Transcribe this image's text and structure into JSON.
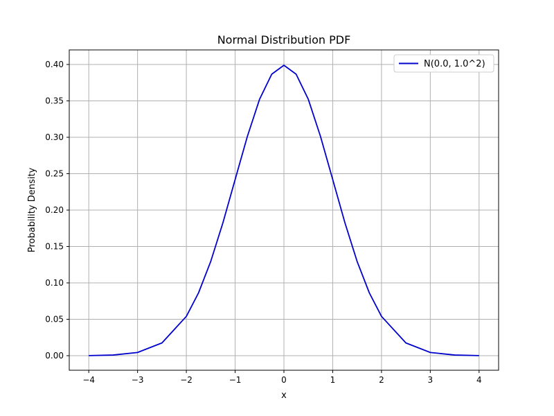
{
  "chart_data": {
    "type": "line",
    "title": "Normal Distribution PDF",
    "xlabel": "x",
    "ylabel": "Probability Density",
    "xlim": [
      -4.4,
      4.4
    ],
    "ylim": [
      -0.02,
      0.42
    ],
    "x_ticks": [
      -4,
      -3,
      -2,
      -1,
      0,
      1,
      2,
      3,
      4
    ],
    "x_tick_labels": [
      "−4",
      "−3",
      "−2",
      "−1",
      "0",
      "1",
      "2",
      "3",
      "4"
    ],
    "y_ticks": [
      0.0,
      0.05,
      0.1,
      0.15,
      0.2,
      0.25,
      0.3,
      0.35,
      0.4
    ],
    "y_tick_labels": [
      "0.00",
      "0.05",
      "0.10",
      "0.15",
      "0.20",
      "0.25",
      "0.30",
      "0.35",
      "0.40"
    ],
    "grid": true,
    "legend": {
      "placement": "top-right"
    },
    "series": [
      {
        "name": "N(0.0, 1.0^2)",
        "color": "#0000cc",
        "x": [
          -4.0,
          -3.5,
          -3.0,
          -2.5,
          -2.0,
          -1.75,
          -1.5,
          -1.25,
          -1.0,
          -0.75,
          -0.5,
          -0.25,
          0.0,
          0.25,
          0.5,
          0.75,
          1.0,
          1.25,
          1.5,
          1.75,
          2.0,
          2.5,
          3.0,
          3.5,
          4.0
        ],
        "y": [
          0.0001,
          0.0009,
          0.0044,
          0.0175,
          0.054,
          0.0863,
          0.1295,
          0.1826,
          0.242,
          0.3011,
          0.3521,
          0.3867,
          0.3989,
          0.3867,
          0.3521,
          0.3011,
          0.242,
          0.1826,
          0.1295,
          0.0863,
          0.054,
          0.0175,
          0.0044,
          0.0009,
          0.0001
        ]
      }
    ]
  }
}
